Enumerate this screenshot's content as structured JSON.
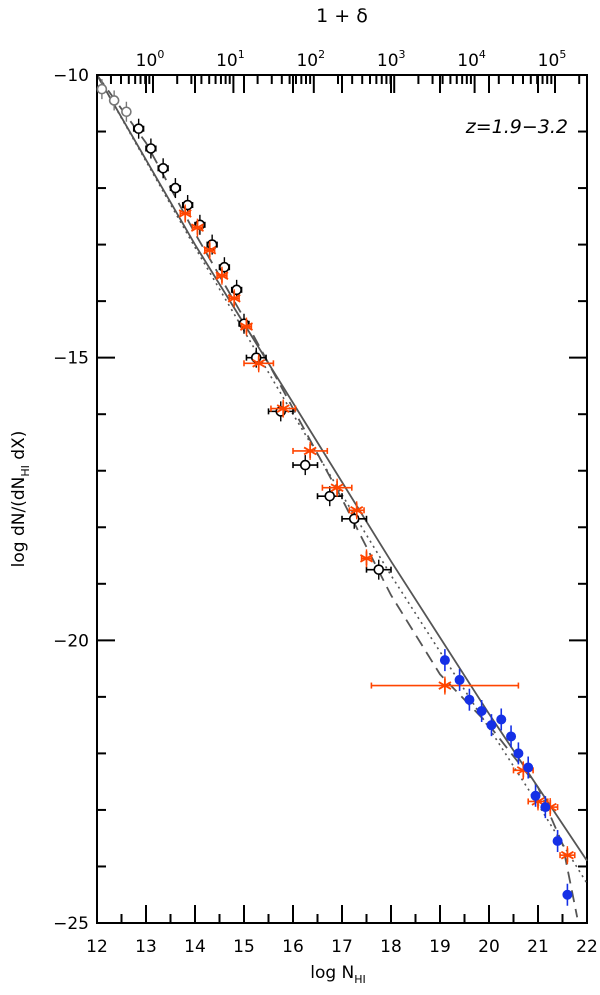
{
  "chart_data": {
    "type": "scatter",
    "title": "",
    "annotation": "z=1.9−3.2",
    "xlabel": "log N",
    "xlabel_sub": "HI",
    "ylabel": "log dN/(dN",
    "ylabel_sub": "HI",
    "ylabel_tail": " dX)",
    "top_xlabel": "1 + δ",
    "xlim": [
      12,
      22
    ],
    "ylim": [
      -25,
      -10
    ],
    "x_ticks": [
      "12",
      "13",
      "14",
      "15",
      "16",
      "17",
      "18",
      "19",
      "20",
      "21",
      "22"
    ],
    "y_ticks": [
      "−10",
      "−15",
      "−20",
      "−25"
    ],
    "top_ticks": [
      {
        "base": "10",
        "exp": "0"
      },
      {
        "base": "10",
        "exp": "1"
      },
      {
        "base": "10",
        "exp": "2"
      },
      {
        "base": "10",
        "exp": "3"
      },
      {
        "base": "10",
        "exp": "4"
      },
      {
        "base": "10",
        "exp": "5"
      }
    ],
    "colors": {
      "black": "#000000",
      "gray": "#777777",
      "orange": "#ff4500",
      "blue": "#1530e6",
      "model": "#555555"
    },
    "series": [
      {
        "name": "gray circles",
        "marker": "circle",
        "color": "#777777",
        "points": [
          [
            12.1,
            -10.25,
            0
          ],
          [
            12.35,
            -10.45,
            0
          ],
          [
            12.6,
            -10.65,
            0
          ]
        ]
      },
      {
        "name": "black circles",
        "marker": "circle",
        "color": "#000000",
        "points": [
          [
            12.85,
            -10.95,
            0.1
          ],
          [
            13.1,
            -11.3,
            0.1
          ],
          [
            13.35,
            -11.65,
            0.1
          ],
          [
            13.6,
            -12.0,
            0.1
          ],
          [
            13.85,
            -12.3,
            0.1
          ],
          [
            14.1,
            -12.65,
            0.1
          ],
          [
            14.35,
            -13.0,
            0.1
          ],
          [
            14.6,
            -13.4,
            0.1
          ],
          [
            14.85,
            -13.8,
            0.1
          ],
          [
            15.0,
            -14.4,
            0.1
          ],
          [
            15.25,
            -15.0,
            0.2
          ],
          [
            15.75,
            -15.95,
            0.25
          ],
          [
            16.25,
            -16.9,
            0.25
          ],
          [
            16.75,
            -17.45,
            0.25
          ],
          [
            17.25,
            -17.85,
            0.25
          ],
          [
            17.75,
            -18.75,
            0.25
          ]
        ]
      },
      {
        "name": "orange stars",
        "marker": "star",
        "color": "#ff4500",
        "points": [
          [
            13.8,
            -12.45,
            0.1
          ],
          [
            14.05,
            -12.7,
            0.1
          ],
          [
            14.3,
            -13.1,
            0.1
          ],
          [
            14.55,
            -13.55,
            0.1
          ],
          [
            14.8,
            -13.95,
            0.1
          ],
          [
            15.05,
            -14.45,
            0.1
          ],
          [
            15.3,
            -15.1,
            0.3
          ],
          [
            15.8,
            -15.9,
            0.25
          ],
          [
            16.35,
            -16.65,
            0.35
          ],
          [
            16.9,
            -17.3,
            0.3
          ],
          [
            17.3,
            -17.7,
            0.15
          ],
          [
            17.5,
            -18.55,
            0.1
          ],
          [
            19.1,
            -20.8,
            1.5
          ],
          [
            20.7,
            -22.3,
            0.2
          ],
          [
            21.0,
            -22.85,
            0.2
          ],
          [
            21.25,
            -22.95,
            0.15
          ],
          [
            21.6,
            -23.8,
            0.15
          ]
        ]
      },
      {
        "name": "blue points",
        "marker": "dot",
        "color": "#1530e6",
        "points": [
          [
            19.1,
            -20.35,
            0
          ],
          [
            19.4,
            -20.7,
            0
          ],
          [
            19.6,
            -21.05,
            0
          ],
          [
            19.85,
            -21.25,
            0
          ],
          [
            20.05,
            -21.5,
            0
          ],
          [
            20.25,
            -21.4,
            0
          ],
          [
            20.45,
            -21.7,
            0
          ],
          [
            20.6,
            -22.0,
            0
          ],
          [
            20.8,
            -22.25,
            0
          ],
          [
            20.95,
            -22.75,
            0
          ],
          [
            21.15,
            -22.95,
            0
          ],
          [
            21.4,
            -23.55,
            0
          ],
          [
            21.6,
            -24.5,
            0
          ]
        ]
      }
    ],
    "model_lines": [
      {
        "name": "solid",
        "style": "solid",
        "points": [
          [
            12,
            -10
          ],
          [
            14,
            -13.0
          ],
          [
            16,
            -15.8
          ],
          [
            18,
            -18.6
          ],
          [
            20,
            -21.3
          ],
          [
            21,
            -22.6
          ],
          [
            22,
            -23.9
          ]
        ]
      },
      {
        "name": "dotted",
        "style": "dotted",
        "points": [
          [
            12,
            -10
          ],
          [
            14,
            -13.05
          ],
          [
            16,
            -16.0
          ],
          [
            18,
            -18.85
          ],
          [
            20,
            -21.55
          ],
          [
            21,
            -22.9
          ],
          [
            22,
            -24.3
          ]
        ]
      },
      {
        "name": "dashed",
        "style": "dashed",
        "points": [
          [
            12,
            -10
          ],
          [
            13,
            -11.2
          ],
          [
            14,
            -12.8
          ],
          [
            15,
            -14.3
          ],
          [
            16,
            -15.9
          ],
          [
            17,
            -17.5
          ],
          [
            18,
            -19.2
          ],
          [
            19,
            -20.6
          ],
          [
            20,
            -21.5
          ],
          [
            21,
            -22.6
          ],
          [
            21.5,
            -23.6
          ],
          [
            21.8,
            -24.9
          ]
        ]
      }
    ]
  }
}
